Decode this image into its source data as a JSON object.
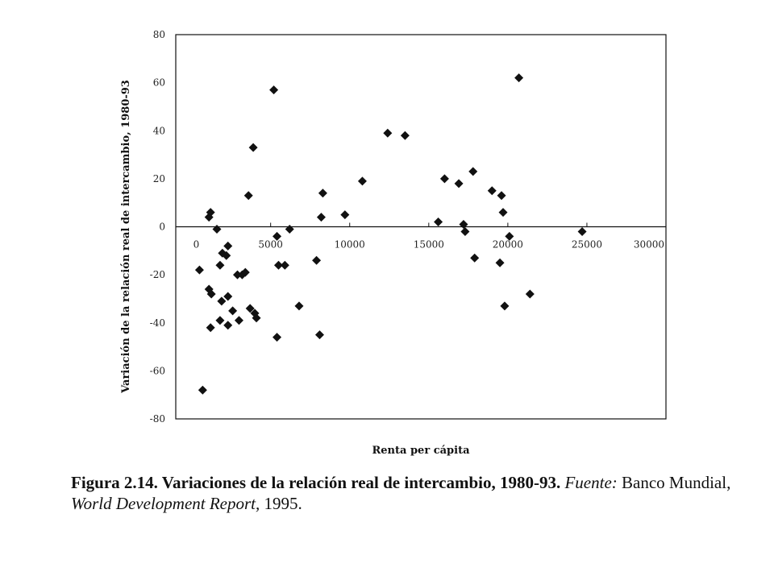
{
  "chart_data": {
    "type": "scatter",
    "title": "",
    "xlabel": "Renta per cápita",
    "ylabel": "Variación de la relación real de intercambio, 1980-93",
    "xlim": [
      -1000,
      30000
    ],
    "ylim": [
      -80,
      80
    ],
    "x_ticks": [
      0,
      5000,
      10000,
      15000,
      20000,
      25000,
      30000
    ],
    "y_ticks": [
      80,
      60,
      40,
      20,
      0,
      -20,
      -40,
      -60,
      -80
    ],
    "grid": false,
    "marker": "diamond",
    "marker_color": "#111111",
    "points": [
      {
        "x": 500,
        "y": -18
      },
      {
        "x": 700,
        "y": -68
      },
      {
        "x": 1100,
        "y": 4
      },
      {
        "x": 1200,
        "y": 6
      },
      {
        "x": 1100,
        "y": -26
      },
      {
        "x": 1250,
        "y": -28
      },
      {
        "x": 1200,
        "y": -42
      },
      {
        "x": 1600,
        "y": -1
      },
      {
        "x": 1800,
        "y": -16
      },
      {
        "x": 1950,
        "y": -11
      },
      {
        "x": 1900,
        "y": -31
      },
      {
        "x": 1800,
        "y": -39
      },
      {
        "x": 2200,
        "y": -12
      },
      {
        "x": 2300,
        "y": -8
      },
      {
        "x": 2300,
        "y": -29
      },
      {
        "x": 2300,
        "y": -41
      },
      {
        "x": 2600,
        "y": -35
      },
      {
        "x": 2900,
        "y": -20
      },
      {
        "x": 3000,
        "y": -39
      },
      {
        "x": 3200,
        "y": -20
      },
      {
        "x": 3400,
        "y": -19
      },
      {
        "x": 3600,
        "y": 13
      },
      {
        "x": 3700,
        "y": -34
      },
      {
        "x": 3900,
        "y": 33
      },
      {
        "x": 4000,
        "y": -36
      },
      {
        "x": 4100,
        "y": -38
      },
      {
        "x": 5200,
        "y": 57
      },
      {
        "x": 5400,
        "y": -4
      },
      {
        "x": 5500,
        "y": -16
      },
      {
        "x": 5400,
        "y": -46
      },
      {
        "x": 5900,
        "y": -16
      },
      {
        "x": 6200,
        "y": -1
      },
      {
        "x": 6800,
        "y": -33
      },
      {
        "x": 7900,
        "y": -14
      },
      {
        "x": 8100,
        "y": -45
      },
      {
        "x": 8200,
        "y": 4
      },
      {
        "x": 8300,
        "y": 14
      },
      {
        "x": 9700,
        "y": 5
      },
      {
        "x": 10800,
        "y": 19
      },
      {
        "x": 12400,
        "y": 39
      },
      {
        "x": 13500,
        "y": 38
      },
      {
        "x": 15600,
        "y": 2
      },
      {
        "x": 16000,
        "y": 20
      },
      {
        "x": 16900,
        "y": 18
      },
      {
        "x": 17200,
        "y": 1
      },
      {
        "x": 17300,
        "y": -2
      },
      {
        "x": 17800,
        "y": 23
      },
      {
        "x": 17900,
        "y": -13
      },
      {
        "x": 19000,
        "y": 15
      },
      {
        "x": 19500,
        "y": -15
      },
      {
        "x": 19600,
        "y": 13
      },
      {
        "x": 19700,
        "y": 6
      },
      {
        "x": 19800,
        "y": -33
      },
      {
        "x": 20100,
        "y": -4
      },
      {
        "x": 20700,
        "y": 62
      },
      {
        "x": 21400,
        "y": -28
      },
      {
        "x": 24700,
        "y": -2
      }
    ]
  },
  "caption": {
    "lead": "Figura 2.14. Variaciones de la relación real de intercambio, 1980-93.",
    "fuente_label": "Fuente:",
    "source_a": "Banco Mundial,",
    "report": "World Development Report,",
    "year": "1995."
  }
}
